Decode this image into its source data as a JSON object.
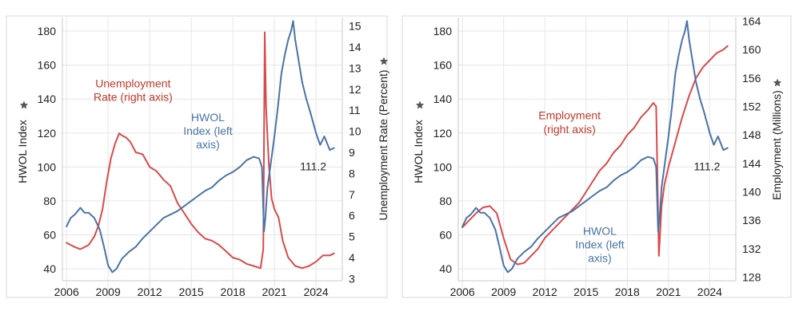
{
  "chart_data": [
    {
      "type": "line",
      "panel": "left",
      "xlim": [
        2005.7,
        2025.9
      ],
      "xticks": [
        2006,
        2009,
        2012,
        2015,
        2018,
        2021,
        2024
      ],
      "ylabel": "HWOL Index",
      "ylim": [
        33,
        188
      ],
      "yticks": [
        40,
        60,
        80,
        100,
        120,
        140,
        160,
        180
      ],
      "y2label": "Unemployment Rate (Percent)",
      "y2lim": [
        2.9,
        15.4
      ],
      "y2ticks": [
        3,
        4,
        5,
        6,
        7,
        8,
        9,
        10,
        11,
        12,
        13,
        14,
        15
      ],
      "colors": {
        "hwol": "#4a73a6",
        "secondary": "#d94a4a"
      },
      "series": [
        {
          "axis": "left",
          "color": "#4a73a6",
          "x": [
            2006.0,
            2006.3,
            2006.6,
            2007.0,
            2007.3,
            2007.6,
            2008.0,
            2008.4,
            2008.7,
            2009.0,
            2009.3,
            2009.6,
            2010.0,
            2010.5,
            2011.0,
            2011.5,
            2012.0,
            2012.5,
            2013.0,
            2013.5,
            2014.0,
            2014.5,
            2015.0,
            2015.5,
            2016.0,
            2016.5,
            2017.0,
            2017.5,
            2018.0,
            2018.5,
            2019.0,
            2019.5,
            2019.9,
            2020.1,
            2020.25,
            2020.35,
            2020.5,
            2020.75,
            2021.0,
            2021.25,
            2021.5,
            2021.75,
            2022.0,
            2022.2,
            2022.35,
            2022.5,
            2022.7,
            2023.0,
            2023.3,
            2023.6,
            2024.0,
            2024.3,
            2024.6,
            2025.0,
            2025.3
          ],
          "y": [
            65,
            70,
            72,
            76,
            73,
            73,
            70,
            63,
            53,
            42,
            38,
            40,
            46,
            50,
            53,
            58,
            62,
            66,
            70,
            72,
            74,
            77,
            80,
            83,
            86,
            88,
            92,
            95,
            97,
            100,
            104,
            106,
            105,
            100,
            62,
            70,
            88,
            103,
            118,
            135,
            155,
            166,
            175,
            180,
            186,
            175,
            165,
            150,
            140,
            132,
            120,
            113,
            118,
            110,
            111.2
          ]
        },
        {
          "axis": "right",
          "color": "#d94a4a",
          "x": [
            2006.0,
            2006.3,
            2006.6,
            2007.0,
            2007.3,
            2007.6,
            2008.0,
            2008.3,
            2008.6,
            2008.9,
            2009.2,
            2009.5,
            2009.8,
            2010.0,
            2010.3,
            2010.6,
            2011.0,
            2011.5,
            2012.0,
            2012.5,
            2013.0,
            2013.5,
            2014.0,
            2014.5,
            2015.0,
            2015.5,
            2016.0,
            2016.5,
            2017.0,
            2017.5,
            2018.0,
            2018.5,
            2019.0,
            2019.5,
            2020.0,
            2020.2,
            2020.3,
            2020.4,
            2020.6,
            2020.8,
            2021.0,
            2021.3,
            2021.6,
            2022.0,
            2022.5,
            2023.0,
            2023.5,
            2024.0,
            2024.5,
            2025.0,
            2025.3
          ],
          "y": [
            4.7,
            4.6,
            4.5,
            4.4,
            4.5,
            4.6,
            5.0,
            5.5,
            6.3,
            7.6,
            8.7,
            9.4,
            9.9,
            9.8,
            9.7,
            9.5,
            9.0,
            8.9,
            8.3,
            8.1,
            7.7,
            7.4,
            6.6,
            6.1,
            5.6,
            5.2,
            4.9,
            4.8,
            4.6,
            4.3,
            4.0,
            3.9,
            3.7,
            3.6,
            3.5,
            4.4,
            14.7,
            11.1,
            8.4,
            6.8,
            6.3,
            5.9,
            4.8,
            4.0,
            3.6,
            3.5,
            3.6,
            3.8,
            4.1,
            4.1,
            4.2
          ]
        }
      ],
      "annotations": [
        {
          "text": "Unemployment",
          "x": 2010.8,
          "y": 147,
          "color": "#c0392b"
        },
        {
          "text": "Rate (right axis)",
          "x": 2010.8,
          "y": 139,
          "color": "#c0392b"
        },
        {
          "text": "HWOL",
          "x": 2016.2,
          "y": 127,
          "color": "#4a73a6"
        },
        {
          "text": "Index (left",
          "x": 2016.2,
          "y": 119,
          "color": "#4a73a6"
        },
        {
          "text": "axis)",
          "x": 2016.2,
          "y": 111,
          "color": "#4a73a6"
        },
        {
          "text": "111.2",
          "x": 2023.8,
          "y": 98,
          "color": "#222222"
        }
      ]
    },
    {
      "type": "line",
      "panel": "right",
      "xlim": [
        2005.7,
        2025.9
      ],
      "xticks": [
        2006,
        2009,
        2012,
        2015,
        2018,
        2021,
        2024
      ],
      "ylabel": "HWOL Index",
      "ylim": [
        33,
        188
      ],
      "yticks": [
        40,
        60,
        80,
        100,
        120,
        140,
        160,
        180
      ],
      "y2label": "Employment (Millions)",
      "y2lim": [
        127.5,
        164.5
      ],
      "y2ticks": [
        128,
        132,
        136,
        140,
        144,
        148,
        152,
        156,
        160,
        164
      ],
      "colors": {
        "hwol": "#4a73a6",
        "secondary": "#d94a4a"
      },
      "series": [
        {
          "axis": "left",
          "color": "#4a73a6",
          "x": [
            2006.0,
            2006.3,
            2006.6,
            2007.0,
            2007.3,
            2007.6,
            2008.0,
            2008.4,
            2008.7,
            2009.0,
            2009.3,
            2009.6,
            2010.0,
            2010.5,
            2011.0,
            2011.5,
            2012.0,
            2012.5,
            2013.0,
            2013.5,
            2014.0,
            2014.5,
            2015.0,
            2015.5,
            2016.0,
            2016.5,
            2017.0,
            2017.5,
            2018.0,
            2018.5,
            2019.0,
            2019.5,
            2019.9,
            2020.1,
            2020.25,
            2020.35,
            2020.5,
            2020.75,
            2021.0,
            2021.25,
            2021.5,
            2021.75,
            2022.0,
            2022.2,
            2022.35,
            2022.5,
            2022.7,
            2023.0,
            2023.3,
            2023.6,
            2024.0,
            2024.3,
            2024.6,
            2025.0,
            2025.3
          ],
          "y": [
            65,
            70,
            72,
            76,
            73,
            73,
            70,
            63,
            53,
            42,
            38,
            40,
            46,
            50,
            53,
            58,
            62,
            66,
            70,
            72,
            74,
            77,
            80,
            83,
            86,
            88,
            92,
            95,
            97,
            100,
            104,
            106,
            105,
            100,
            62,
            70,
            88,
            103,
            118,
            135,
            155,
            166,
            175,
            180,
            186,
            175,
            165,
            150,
            140,
            132,
            120,
            113,
            118,
            110,
            111.2
          ]
        },
        {
          "axis": "right",
          "color": "#d94a4a",
          "x": [
            2006.0,
            2006.5,
            2007.0,
            2007.5,
            2008.0,
            2008.5,
            2009.0,
            2009.5,
            2010.0,
            2010.5,
            2011.0,
            2011.5,
            2012.0,
            2012.5,
            2013.0,
            2013.5,
            2014.0,
            2014.5,
            2015.0,
            2015.5,
            2016.0,
            2016.5,
            2017.0,
            2017.5,
            2018.0,
            2018.5,
            2019.0,
            2019.5,
            2019.9,
            2020.1,
            2020.3,
            2020.5,
            2020.7,
            2021.0,
            2021.5,
            2022.0,
            2022.5,
            2023.0,
            2023.5,
            2024.0,
            2024.5,
            2025.0,
            2025.3
          ],
          "y": [
            135.0,
            136.0,
            137.0,
            137.8,
            138.0,
            137.0,
            133.5,
            130.5,
            129.8,
            130.0,
            131.0,
            132.0,
            133.5,
            134.5,
            135.5,
            136.5,
            137.5,
            138.5,
            140.0,
            141.5,
            143.0,
            144.0,
            145.5,
            146.5,
            148.0,
            149.0,
            150.5,
            151.5,
            152.5,
            152.0,
            131.0,
            138.0,
            141.0,
            143.5,
            147.0,
            150.5,
            153.5,
            156.0,
            157.5,
            158.5,
            159.5,
            160.0,
            160.5
          ]
        }
      ],
      "annotations": [
        {
          "text": "Employment",
          "x": 2013.8,
          "y": 128,
          "color": "#c0392b"
        },
        {
          "text": "(right axis)",
          "x": 2013.8,
          "y": 120,
          "color": "#c0392b"
        },
        {
          "text": "HWOL",
          "x": 2016.0,
          "y": 60,
          "color": "#4a73a6"
        },
        {
          "text": "Index (left",
          "x": 2016.0,
          "y": 52,
          "color": "#4a73a6"
        },
        {
          "text": "axis)",
          "x": 2016.0,
          "y": 44,
          "color": "#4a73a6"
        },
        {
          "text": "111.2",
          "x": 2023.8,
          "y": 98,
          "color": "#222222"
        }
      ]
    }
  ]
}
